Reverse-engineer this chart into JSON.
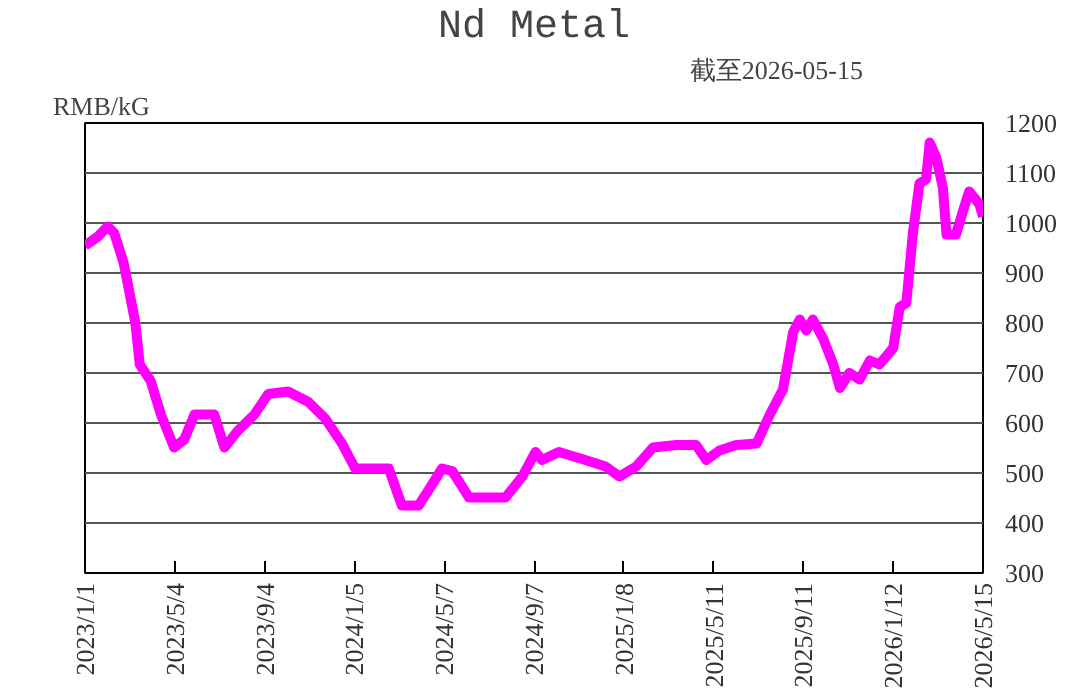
{
  "chart_data": {
    "type": "line",
    "title": "Nd Metal",
    "subtitle": "截至2026-05-15",
    "ylabel": "RMB/kG",
    "x": [
      "2023-01-01",
      "2023-01-18",
      "2023-02-01",
      "2023-02-10",
      "2023-02-23",
      "2023-03-11",
      "2023-03-17",
      "2023-04-01",
      "2023-04-15",
      "2023-05-03",
      "2023-05-17",
      "2023-05-31",
      "2023-06-27",
      "2023-07-11",
      "2023-07-29",
      "2023-08-21",
      "2023-09-09",
      "2023-10-06",
      "2023-11-03",
      "2023-11-26",
      "2023-12-19",
      "2024-01-06",
      "2024-02-21",
      "2024-03-10",
      "2024-04-02",
      "2024-04-20",
      "2024-05-04",
      "2024-05-18",
      "2024-06-10",
      "2024-07-07",
      "2024-07-30",
      "2024-08-22",
      "2024-09-09",
      "2024-09-18",
      "2024-10-11",
      "2024-11-12",
      "2024-12-14",
      "2025-01-02",
      "2025-01-25",
      "2025-02-17",
      "2025-03-21",
      "2025-04-17",
      "2025-05-01",
      "2025-05-19",
      "2025-06-11",
      "2025-07-09",
      "2025-07-27",
      "2025-08-14",
      "2025-08-28",
      "2025-09-06",
      "2025-09-15",
      "2025-09-24",
      "2025-10-08",
      "2025-10-22",
      "2025-10-31",
      "2025-11-13",
      "2025-11-27",
      "2025-12-11",
      "2025-12-24",
      "2026-01-12",
      "2026-01-21",
      "2026-01-30",
      "2026-02-08",
      "2026-02-17",
      "2026-02-26",
      "2026-03-03",
      "2026-03-12",
      "2026-03-21",
      "2026-03-26",
      "2026-04-08",
      "2026-04-17",
      "2026-04-26",
      "2026-05-10",
      "2026-05-15"
    ],
    "series": [
      {
        "color": "#ff00ff",
        "values": [
          955,
          972,
          993,
          980,
          920,
          800,
          717,
          684,
          617,
          551,
          567,
          617,
          617,
          551,
          584,
          617,
          658,
          663,
          642,
          609,
          559,
          509,
          509,
          435,
          435,
          476,
          509,
          504,
          451,
          451,
          451,
          493,
          542,
          526,
          542,
          528,
          513,
          493,
          513,
          551,
          556,
          556,
          526,
          545,
          556,
          559,
          617,
          667,
          782,
          807,
          785,
          807,
          769,
          717,
          670,
          700,
          687,
          725,
          717,
          750,
          832,
          840,
          980,
          1079,
          1087,
          1161,
          1131,
          1071,
          977,
          977,
          1021,
          1063,
          1038,
          1013
        ]
      }
    ],
    "xlim": [
      "2023-01-01",
      "2026-05-15"
    ],
    "xticks": [
      {
        "value": "2023-01-01",
        "label": "2023/1/1"
      },
      {
        "value": "2023-05-04",
        "label": "2023/5/4"
      },
      {
        "value": "2023-09-04",
        "label": "2023/9/4"
      },
      {
        "value": "2024-01-05",
        "label": "2024/1/5"
      },
      {
        "value": "2024-05-07",
        "label": "2024/5/7"
      },
      {
        "value": "2024-09-07",
        "label": "2024/9/7"
      },
      {
        "value": "2025-01-08",
        "label": "2025/1/8"
      },
      {
        "value": "2025-05-11",
        "label": "2025/5/11"
      },
      {
        "value": "2025-09-11",
        "label": "2025/9/11"
      },
      {
        "value": "2026-01-12",
        "label": "2026/1/12"
      },
      {
        "value": "2026-05-15",
        "label": "2026/5/15"
      }
    ],
    "ylim": [
      300,
      1200
    ],
    "yticks": [
      300,
      400,
      500,
      600,
      700,
      800,
      900,
      1000,
      1100,
      1200
    ],
    "grid": "y",
    "marker": "none",
    "line_style": "solid"
  }
}
